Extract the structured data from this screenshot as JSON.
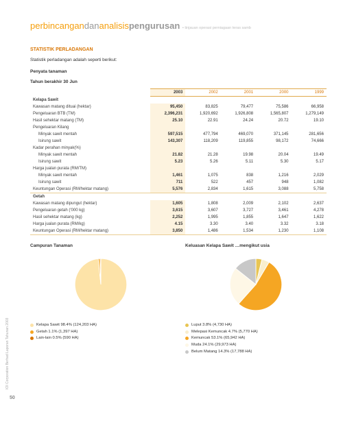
{
  "page_number": "50",
  "side_label": "IOI Corporation Berhad  Laporan Tahunan 2003",
  "title": {
    "t1": "perbincangan",
    "t2": "dan",
    "t3": "analisis",
    "t4": "pengurusan",
    "sub": "• tinjauan operasi perniagaan teras samb"
  },
  "section_head": "STATISTIK PERLADANGAN",
  "intro": "Statistik perladangan adalah seperti berikut:",
  "subhead1": "Penyata tanaman",
  "subhead2": "Tahun berakhir 30 Jun",
  "year_cols": [
    "2003",
    "2002",
    "2001",
    "2000",
    "1999"
  ],
  "sawit_header": "Kelapa Sawit",
  "sawit_rows": [
    {
      "label": "Kawasan matang dituai (hektar)",
      "v": [
        "95,450",
        "83,825",
        "79,477",
        "75,586",
        "66,958"
      ]
    },
    {
      "label": "Pengeluaran BTB (TM)",
      "v": [
        "2,396,231",
        "1,920,692",
        "1,926,808",
        "1,565,807",
        "1,279,149"
      ]
    },
    {
      "label": "Hasil sehektar matang (TM)",
      "v": [
        "25.10",
        "22.91",
        "24.24",
        "20.72",
        "19.10"
      ]
    },
    {
      "label": "Pengeluaran Kilang",
      "v": [
        "",
        "",
        "",
        "",
        ""
      ]
    },
    {
      "label": "Minyak sawit mentah",
      "indent": true,
      "v": [
        "597,515",
        "477,794",
        "469,070",
        "371,145",
        "281,656"
      ]
    },
    {
      "label": "Isirung sawit",
      "indent": true,
      "v": [
        "143,307",
        "118,209",
        "119,855",
        "98,172",
        "74,666"
      ]
    },
    {
      "label": "Kadar perahan minyak(%)",
      "v": [
        "",
        "",
        "",
        "",
        ""
      ]
    },
    {
      "label": "Minyak sawit mentah",
      "indent": true,
      "v": [
        "21.82",
        "21.28",
        "19.98",
        "20.04",
        "19.49"
      ]
    },
    {
      "label": "Isirung sawit",
      "indent": true,
      "v": [
        "5.23",
        "5.26",
        "5.11",
        "5.30",
        "5.17"
      ]
    },
    {
      "label": "Harga jualan purata (RM/TM)",
      "v": [
        "",
        "",
        "",
        "",
        ""
      ]
    },
    {
      "label": "Minyak sawit mentah",
      "indent": true,
      "v": [
        "1,461",
        "1,075",
        "838",
        "1,216",
        "2,029"
      ]
    },
    {
      "label": "Isirung sawit",
      "indent": true,
      "v": [
        "711",
        "522",
        "457",
        "948",
        "1,082"
      ]
    },
    {
      "label": "Keuntungan Operasi (RM/hektar matang)",
      "v": [
        "5,576",
        "2,834",
        "1,615",
        "3,088",
        "5,758"
      ]
    }
  ],
  "getah_header": "Getah",
  "getah_rows": [
    {
      "label": "Kawasan matang dipungut (hektar)",
      "v": [
        "1,605",
        "1,808",
        "2,009",
        "2,102",
        "2,637"
      ]
    },
    {
      "label": "Pengeluaran getah ('000 kg)",
      "v": [
        "3,615",
        "3,607",
        "3,727",
        "3,461",
        "4,278"
      ]
    },
    {
      "label": "Hasil sehektar matang (kg)",
      "v": [
        "2,252",
        "1,995",
        "1,855",
        "1,647",
        "1,622"
      ]
    },
    {
      "label": "Harga jualan purata (RM/kg)",
      "v": [
        "4.15",
        "3.30",
        "3.40",
        "3.32",
        "3.18"
      ]
    },
    {
      "label": "Keuntungan Operasi (RM/hektar matang)",
      "v": [
        "3,850",
        "1,486",
        "1,534",
        "1,230",
        "1,108"
      ]
    }
  ],
  "chart1": {
    "title": "Campuran Tanaman",
    "type": "pie",
    "radius": 42,
    "background": "#ffffff",
    "slices": [
      {
        "label": "Kelapa Sawit 98.4% (124,203 HA)",
        "value": 98.4,
        "color": "#fde3a8"
      },
      {
        "label": "Getah 1.1% (1,397 HA)",
        "value": 1.1,
        "color": "#f5a623"
      },
      {
        "label": "Lain-lain 0.5% (590 HA)",
        "value": 0.5,
        "color": "#d97706"
      }
    ],
    "stroke": "#ffffff",
    "stroke_width": 1
  },
  "chart2": {
    "title": "Keluasan Kelapa Sawit …mengikut usia",
    "type": "pie",
    "radius": 42,
    "background": "#ffffff",
    "slices": [
      {
        "label": "Luput 3.8% (4,730 HA)",
        "value": 3.8,
        "color": "#e8c553"
      },
      {
        "label": "Melepasi Kemuncak 4.7% (5,770 HA)",
        "value": 4.7,
        "color": "#f9eecd"
      },
      {
        "label": "Kemuncak 53.1% (65,942 HA)",
        "value": 53.1,
        "color": "#f5a623"
      },
      {
        "label": "Muda 24.1% (29,973 HA)",
        "value": 24.1,
        "color": "#fef7e6"
      },
      {
        "label": "Belum Matang 14.3% (17,788 HA)",
        "value": 14.3,
        "color": "#c8c8c8"
      }
    ],
    "stroke": "#ffffff",
    "stroke_width": 1
  }
}
